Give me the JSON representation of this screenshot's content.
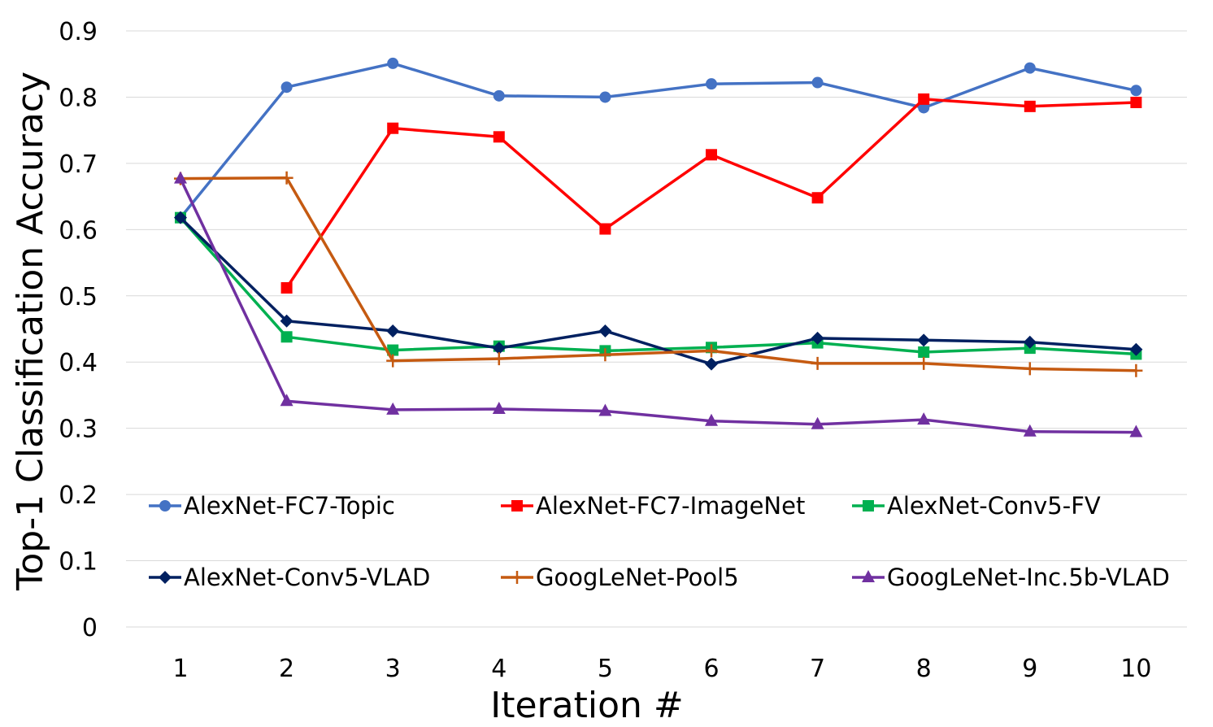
{
  "chart_data": {
    "type": "line",
    "title": "",
    "xlabel": "Iteration #",
    "ylabel": "Top-1 Classification Accuracy",
    "x": [
      1,
      2,
      3,
      4,
      5,
      6,
      7,
      8,
      9,
      10
    ],
    "x_tick_labels": [
      "1",
      "2",
      "3",
      "4",
      "5",
      "6",
      "7",
      "8",
      "9",
      "10"
    ],
    "ylim": [
      0,
      0.9
    ],
    "y_ticks": [
      0,
      0.1,
      0.2,
      0.3,
      0.4,
      0.5,
      0.6,
      0.7,
      0.8,
      0.9
    ],
    "y_tick_labels": [
      "0",
      "0.1",
      "0.2",
      "0.3",
      "0.4",
      "0.5",
      "0.6",
      "0.7",
      "0.8",
      "0.9"
    ],
    "grid": true,
    "legend_position": "inside-bottom",
    "series": [
      {
        "name": "AlexNet-FC7-Topic",
        "color": "#4472c4",
        "marker": "circle",
        "values": [
          0.618,
          0.815,
          0.851,
          0.802,
          0.8,
          0.82,
          0.822,
          0.784,
          0.844,
          0.81
        ]
      },
      {
        "name": "AlexNet-FC7-ImageNet",
        "color": "#ff0000",
        "marker": "square",
        "values": [
          null,
          0.512,
          0.753,
          0.74,
          0.601,
          0.713,
          0.648,
          0.797,
          0.786,
          0.792
        ]
      },
      {
        "name": "AlexNet-Conv5-FV",
        "color": "#00b050",
        "marker": "square",
        "values": [
          0.618,
          0.438,
          0.418,
          0.424,
          0.417,
          0.422,
          0.429,
          0.415,
          0.421,
          0.412
        ]
      },
      {
        "name": "AlexNet-Conv5-VLAD",
        "color": "#002060",
        "marker": "diamond",
        "values": [
          0.618,
          0.462,
          0.447,
          0.421,
          0.447,
          0.397,
          0.436,
          0.433,
          0.43,
          0.419
        ]
      },
      {
        "name": "GoogLeNet-Pool5",
        "color": "#c55a11",
        "marker": "plus",
        "values": [
          0.677,
          0.678,
          0.402,
          0.405,
          0.411,
          0.417,
          0.398,
          0.398,
          0.39,
          0.387
        ]
      },
      {
        "name": "GoogLeNet-Inc.5b-VLAD",
        "color": "#7030a0",
        "marker": "triangle",
        "values": [
          0.677,
          0.341,
          0.328,
          0.329,
          0.326,
          0.311,
          0.306,
          0.313,
          0.295,
          0.294
        ]
      }
    ]
  }
}
